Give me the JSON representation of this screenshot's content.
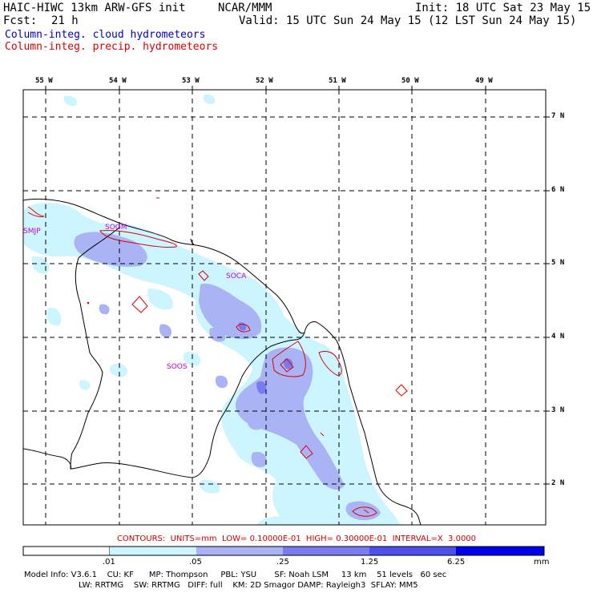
{
  "header": {
    "title_left": "HAIC-HIWC 13km ARW-GFS init",
    "title_center": "NCAR/MMM",
    "init": "Init: 18 UTC Sat 23 May 15",
    "fcst_label": "Fcst:",
    "fcst_value": "21 h",
    "valid": "Valid: 15 UTC Sun 24 May 15 (12 LST Sun 24 May 15)"
  },
  "legend": {
    "cloud_label": "Column-integ. cloud hydrometeors",
    "cloud_color": "#0000cc",
    "precip_label": "Column-integ. precip. hydrometeors",
    "precip_color": "#dd0000"
  },
  "map": {
    "lon_labels": [
      "55 W",
      "54 W",
      "53 W",
      "52 W",
      "51 W",
      "50 W",
      "49 W"
    ],
    "lat_labels": [
      "7 N",
      "6 N",
      "5 N",
      "4 N",
      "3 N",
      "2 N"
    ],
    "stations": [
      "SMJP",
      "SOGM",
      "SOCA",
      "SOOS"
    ]
  },
  "contours": {
    "text": "CONTOURS:  UNITS=mm  LOW= 0.10000E-01  HIGH= 0.30000E-01  INTERVAL=X  3.0000"
  },
  "colorbar": {
    "labels": [
      ".01",
      ".05",
      ".25",
      "1.25",
      "6.25",
      "mm"
    ],
    "colors": [
      "#ffffff",
      "#ccf5ff",
      "#aab4f5",
      "#7b7bf0",
      "#4f4fea",
      "#0000e8"
    ]
  },
  "model_info": {
    "line1": "Model Info: V3.6.1    CU: KF      MP: Thompson     PBL: YSU       SF: Noah LSM     13 km    51 levels   60 sec",
    "line2": "LW: RRTMG    SW: RRTMG   DIFF: full    KM: 2D Smagor DAMP: Rayleigh3  SFLAY: MM5"
  }
}
